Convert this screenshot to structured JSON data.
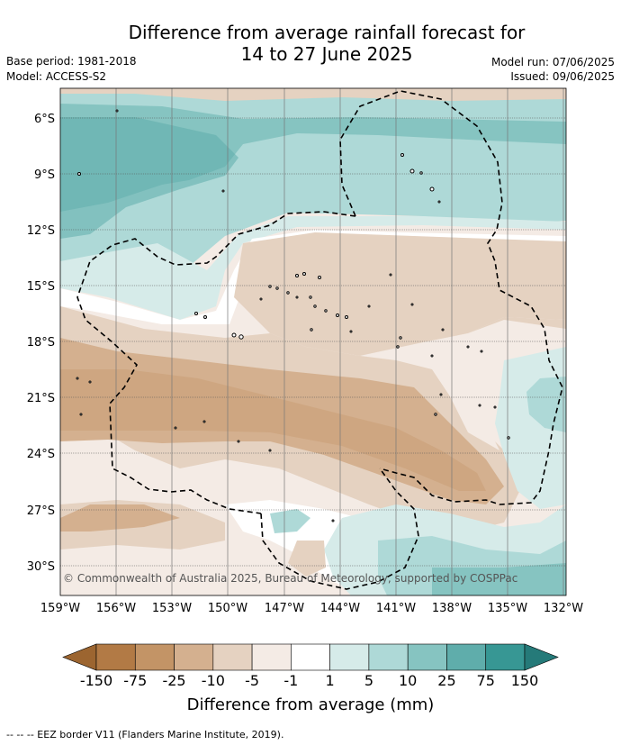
{
  "title": {
    "line1": "Difference from average rainfall forecast for",
    "line2": "14 to 27 June 2025"
  },
  "meta": {
    "base_period": "Base period: 1981-2018",
    "model": "Model: ACCESS-S2",
    "model_run": "Model run: 07/06/2025",
    "issued": "Issued: 09/06/2025"
  },
  "map": {
    "lat_labels": [
      "6°S",
      "9°S",
      "12°S",
      "15°S",
      "18°S",
      "21°S",
      "24°S",
      "27°S",
      "30°S"
    ],
    "lon_labels": [
      "159°W",
      "156°W",
      "153°W",
      "150°W",
      "147°W",
      "144°W",
      "141°W",
      "138°W",
      "135°W",
      "132°W"
    ],
    "copyright": "© Commonwealth of Australia 2025, Bureau of Meteorology, supported by COSPPac"
  },
  "colorbar": {
    "colors": [
      "#9c6530",
      "#b27a45",
      "#c39466",
      "#d4b08f",
      "#e5d2c1",
      "#f4ebe5",
      "#ffffff",
      "#d6ebe9",
      "#aed9d7",
      "#86c4c1",
      "#5fadab",
      "#379794",
      "#257a79"
    ],
    "tick_labels": [
      "-150",
      "-75",
      "-25",
      "-10",
      "-5",
      "-1",
      "1",
      "5",
      "10",
      "25",
      "75",
      "150"
    ],
    "label": "Difference from average (mm)"
  },
  "footer": "--  --  -- EEZ border V11 (Flanders Marine Institute, 2019)."
}
